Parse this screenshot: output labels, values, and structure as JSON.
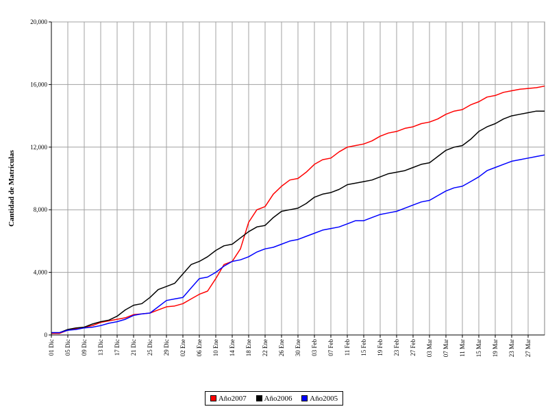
{
  "chart_data": {
    "type": "line",
    "title": "",
    "xlabel": "",
    "ylabel": "Cantidad de Matrículas",
    "ylim": [
      0,
      20000
    ],
    "yticks": [
      "0",
      "4,000",
      "8,000",
      "12,000",
      "16,000",
      "20,000"
    ],
    "xticks": [
      "01 Dic",
      "05 Dic",
      "09 Dic",
      "13 Dic",
      "17 Dic",
      "21 Dic",
      "25 Dic",
      "29 Dic",
      "02 Ene",
      "06 Ene",
      "10 Ene",
      "14 Ene",
      "18 Ene",
      "22 Ene",
      "26 Ene",
      "30 Ene",
      "03 Feb",
      "07 Feb",
      "11 Feb",
      "15 Feb",
      "19 Feb",
      "23 Feb",
      "27 Feb",
      "03 Mar",
      "07 Mar",
      "11 Mar",
      "15 Mar",
      "19 Mar",
      "23 Mar",
      "27 Mar"
    ],
    "x_day_range": [
      0,
      120
    ],
    "grid": true,
    "legend_position": "bottom",
    "series": [
      {
        "name": "Año2007",
        "color": "#ff0000",
        "x": [
          0,
          2,
          4,
          6,
          8,
          10,
          12,
          14,
          16,
          18,
          20,
          22,
          24,
          26,
          28,
          30,
          32,
          34,
          36,
          38,
          40,
          42,
          44,
          46,
          48,
          50,
          52,
          54,
          56,
          58,
          60,
          62,
          64,
          66,
          68,
          70,
          72,
          74,
          76,
          78,
          80,
          82,
          84,
          86,
          88,
          90,
          92,
          94,
          96,
          98,
          100,
          102,
          104,
          106,
          108,
          110,
          112,
          114,
          116,
          118,
          120
        ],
        "y": [
          100,
          100,
          300,
          400,
          500,
          600,
          800,
          900,
          1000,
          1100,
          1300,
          1350,
          1400,
          1600,
          1800,
          1850,
          2000,
          2300,
          2600,
          2800,
          3600,
          4500,
          4700,
          5500,
          7200,
          8000,
          8200,
          9000,
          9500,
          9900,
          10000,
          10400,
          10900,
          11200,
          11300,
          11700,
          12000,
          12100,
          12200,
          12400,
          12700,
          12900,
          13000,
          13200,
          13300,
          13500,
          13600,
          13800,
          14100,
          14300,
          14400,
          14700,
          14900,
          15200,
          15300,
          15500,
          15600,
          15700,
          15750,
          15800,
          15900
        ]
      },
      {
        "name": "Año2006",
        "color": "#000000",
        "x": [
          0,
          2,
          4,
          6,
          8,
          10,
          12,
          14,
          16,
          18,
          20,
          22,
          24,
          26,
          28,
          30,
          32,
          34,
          36,
          38,
          40,
          42,
          44,
          46,
          48,
          50,
          52,
          54,
          56,
          58,
          60,
          62,
          64,
          66,
          68,
          70,
          72,
          74,
          76,
          78,
          80,
          82,
          84,
          86,
          88,
          90,
          92,
          94,
          96,
          98,
          100,
          102,
          104,
          106,
          108,
          110,
          112,
          114,
          116,
          118,
          120
        ],
        "y": [
          150,
          150,
          350,
          450,
          500,
          700,
          850,
          950,
          1200,
          1600,
          1900,
          2000,
          2400,
          2900,
          3100,
          3300,
          3900,
          4500,
          4700,
          5000,
          5400,
          5700,
          5800,
          6200,
          6600,
          6900,
          7000,
          7500,
          7900,
          8000,
          8100,
          8400,
          8800,
          9000,
          9100,
          9300,
          9600,
          9700,
          9800,
          9900,
          10100,
          10300,
          10400,
          10500,
          10700,
          10900,
          11000,
          11400,
          11800,
          12000,
          12100,
          12500,
          13000,
          13300,
          13500,
          13800,
          14000,
          14100,
          14200,
          14300,
          14300
        ]
      },
      {
        "name": "Año2005",
        "color": "#0000ff",
        "x": [
          0,
          2,
          4,
          6,
          8,
          10,
          12,
          14,
          16,
          18,
          20,
          22,
          24,
          26,
          28,
          30,
          32,
          34,
          36,
          38,
          40,
          42,
          44,
          46,
          48,
          50,
          52,
          54,
          56,
          58,
          60,
          62,
          64,
          66,
          68,
          70,
          72,
          74,
          76,
          78,
          80,
          82,
          84,
          86,
          88,
          90,
          92,
          94,
          96,
          98,
          100,
          102,
          104,
          106,
          108,
          110,
          112,
          114,
          116,
          118,
          120
        ],
        "y": [
          150,
          150,
          300,
          350,
          450,
          500,
          600,
          750,
          850,
          1000,
          1250,
          1350,
          1400,
          1800,
          2200,
          2300,
          2400,
          3000,
          3600,
          3700,
          4000,
          4400,
          4700,
          4800,
          5000,
          5300,
          5500,
          5600,
          5800,
          6000,
          6100,
          6300,
          6500,
          6700,
          6800,
          6900,
          7100,
          7300,
          7300,
          7500,
          7700,
          7800,
          7900,
          8100,
          8300,
          8500,
          8600,
          8900,
          9200,
          9400,
          9500,
          9800,
          10100,
          10500,
          10700,
          10900,
          11100,
          11200,
          11300,
          11400,
          11500
        ]
      }
    ]
  }
}
